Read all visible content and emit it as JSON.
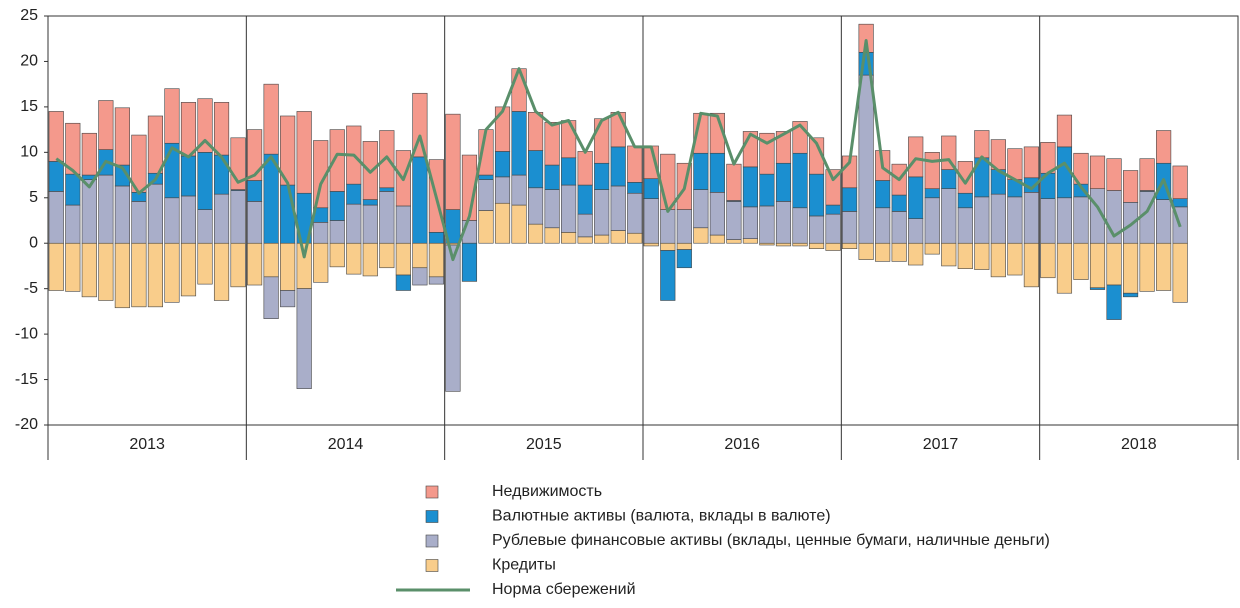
{
  "chart_data": {
    "type": "bar",
    "year_labels": [
      "2013",
      "2014",
      "2015",
      "2016",
      "2017",
      "2018"
    ],
    "categories": [
      null,
      null,
      null,
      null,
      null,
      null,
      null,
      null,
      null,
      null,
      null,
      null,
      null,
      null,
      null,
      null,
      null,
      null,
      null,
      null,
      null,
      null,
      null,
      null,
      null,
      null,
      null,
      null,
      null,
      null,
      null,
      null,
      null,
      null,
      null,
      null,
      null,
      null,
      null,
      null,
      null,
      null,
      null,
      null,
      null,
      null,
      null,
      null,
      null,
      null,
      null,
      null,
      null,
      null,
      null,
      null,
      null,
      null,
      null,
      null,
      null,
      null,
      null,
      null,
      null,
      null,
      null,
      null,
      null
    ],
    "ylim": [
      -20,
      25
    ],
    "yticks": [
      -20,
      -15,
      -10,
      -5,
      0,
      5,
      10,
      15,
      20,
      25
    ],
    "series": [
      {
        "name": "Недвижимость",
        "color": "#f4998c",
        "values": [
          5.5,
          5.6,
          4.6,
          5.4,
          6.3,
          6.3,
          6.3,
          6,
          5.9,
          5.9,
          5.8,
          5.7,
          5.6,
          7.7,
          7.6,
          9,
          7.4,
          6.8,
          6.4,
          6.4,
          6.3,
          6.1,
          7,
          8,
          10.5,
          7.2,
          5,
          4.9,
          4.7,
          4.2,
          4.7,
          4.1,
          3.7,
          4.9,
          3.8,
          4,
          3.6,
          6.1,
          5.1,
          4.4,
          4.4,
          4,
          3.9,
          4.5,
          3.5,
          3.5,
          4,
          3.9,
          3.5,
          3.1,
          3.3,
          3.4,
          4.4,
          4,
          3.7,
          3.5,
          3,
          3.3,
          3.4,
          3.4,
          3.4,
          3.5,
          3.4,
          3.6,
          3.5,
          3.5,
          3.5,
          3.6,
          3.6
        ]
      },
      {
        "name": "Валютные активы (валюта, вклады в валюте)",
        "color": "#1b8fd0",
        "values": [
          3.3,
          3.4,
          0.5,
          2.8,
          2.3,
          1,
          1.2,
          6,
          4.4,
          6.3,
          4.3,
          0.1,
          2.3,
          9.8,
          6.4,
          5.5,
          1.6,
          3.2,
          2.2,
          0.6,
          0.4,
          -1.7,
          9.5,
          1.2,
          3.7,
          -4.2,
          0.5,
          2.8,
          7,
          4.1,
          2.7,
          3,
          3.2,
          2.9,
          4.3,
          1.2,
          2.2,
          -5.5,
          -2,
          4,
          4.3,
          0.1,
          4.4,
          3.5,
          4.2,
          6,
          4.6,
          1,
          2.6,
          2.5,
          3,
          1.8,
          4.6,
          1,
          2.1,
          1.6,
          4.3,
          2.7,
          1.9,
          1.6,
          2.8,
          5.6,
          1.4,
          -0.2,
          -3.8,
          -0.4,
          0.1,
          4,
          0.9
        ]
      },
      {
        "name": "Рублевые финансовые активы (вклады, ценные бумаги, наличные деньги)",
        "color": "#a9aec9",
        "values": [
          5.7,
          4.2,
          7,
          7.5,
          6.3,
          4.6,
          6.5,
          5,
          5.2,
          3.7,
          5.4,
          5.8,
          4.6,
          -4.6,
          -1.8,
          -11,
          2.3,
          2.5,
          4.3,
          4.2,
          5.7,
          4.1,
          -1.9,
          -0.8,
          -16.1,
          2.5,
          3.4,
          2.9,
          3.3,
          4,
          4.2,
          5.2,
          2.5,
          5,
          4.9,
          4.4,
          4.9,
          3.7,
          3.7,
          4.2,
          4.7,
          4.2,
          3.5,
          4.1,
          4.6,
          3.9,
          3,
          3.2,
          3.5,
          18.5,
          3.9,
          3.5,
          2.7,
          5,
          6,
          3.9,
          5.1,
          5.4,
          5.1,
          5.6,
          4.9,
          5,
          5.1,
          6,
          5.8,
          4.5,
          5.7,
          4.8,
          4
        ]
      },
      {
        "name": "Кредиты",
        "color": "#f9cd8b",
        "values": [
          -5.2,
          -5.3,
          -5.9,
          -6.3,
          -7.1,
          -7,
          -7,
          -6.5,
          -5.8,
          -4.5,
          -6.3,
          -4.8,
          -4.6,
          -3.7,
          -5.2,
          -5,
          -4.3,
          -2.6,
          -3.4,
          -3.6,
          -2.7,
          -3.5,
          -2.7,
          -3.7,
          -0.2,
          0,
          3.6,
          4.4,
          4.2,
          2.1,
          1.7,
          1.2,
          0.7,
          0.9,
          1.4,
          1.1,
          -0.3,
          -0.8,
          -0.7,
          1.7,
          0.9,
          0.4,
          0.5,
          -0.2,
          -0.3,
          -0.3,
          -0.6,
          -0.8,
          -0.6,
          -1.8,
          -2,
          -2,
          -2.4,
          -1.2,
          -2.5,
          -2.8,
          -2.9,
          -3.7,
          -3.5,
          -4.8,
          -3.8,
          -5.5,
          -4,
          -4.9,
          -4.6,
          -5.5,
          -5.3,
          -5.2,
          -6.5
        ]
      },
      {
        "name": "Норма сбережений",
        "type": "line",
        "color": "#5a8f6a",
        "values": [
          9.3,
          8,
          6.2,
          9,
          8.3,
          5.5,
          7,
          10.5,
          9.5,
          11.3,
          9.5,
          6.7,
          7.5,
          9.5,
          6.6,
          -1.5,
          6.5,
          9.8,
          9.7,
          7.8,
          9.5,
          7,
          11.8,
          5,
          -1.8,
          3,
          12.5,
          14.5,
          19.2,
          14.5,
          13,
          13.5,
          10,
          13.5,
          14.4,
          10.6,
          10.6,
          3.5,
          6,
          14.3,
          14,
          8.7,
          12,
          11,
          12,
          13,
          11,
          7,
          8.9,
          22.3,
          8.3,
          7,
          9.3,
          9,
          9.2,
          6.6,
          9.5,
          8,
          7,
          6,
          7.7,
          8.8,
          6.2,
          4,
          0.8,
          2,
          3.5,
          7,
          1.8
        ]
      }
    ]
  }
}
